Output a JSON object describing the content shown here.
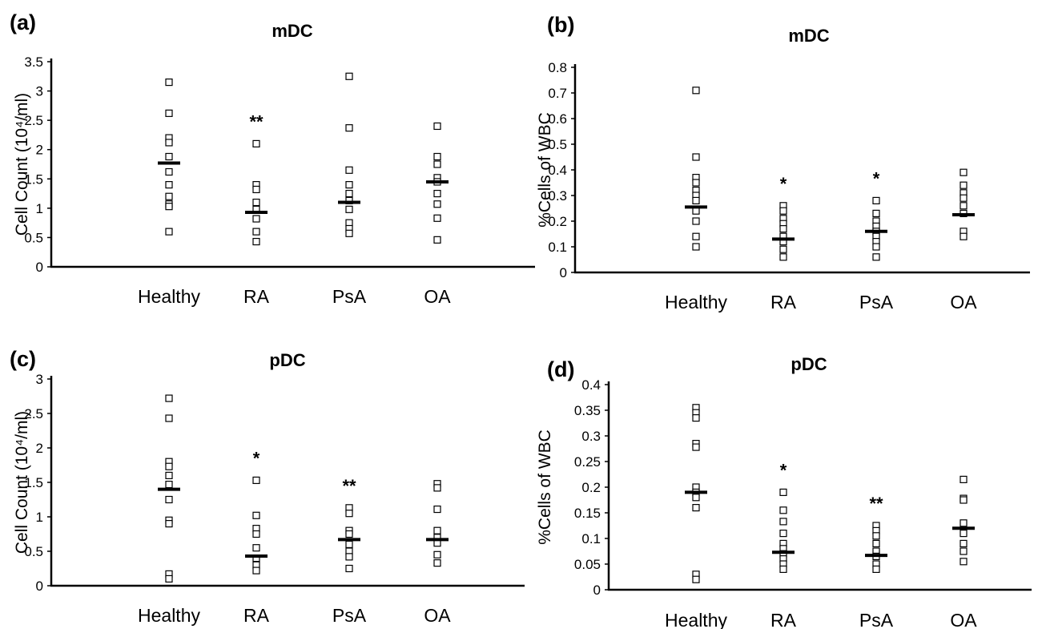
{
  "chart_data": [
    {
      "type": "scatter",
      "panel_label": "(a)",
      "title": "mDC",
      "ylabel": "Cell Count (10⁴/ml)",
      "ylim": [
        0,
        3.5
      ],
      "yticks": [
        "0",
        "0.5",
        "1",
        "1.5",
        "2",
        "2.5",
        "3",
        "3.5"
      ],
      "categories": [
        "Healthy",
        "RA",
        "PsA",
        "OA"
      ],
      "points": [
        [
          3.15,
          2.62,
          2.2,
          2.12,
          1.88,
          1.62,
          1.4,
          1.2,
          1.07,
          1.03,
          0.6
        ],
        [
          2.1,
          1.4,
          1.32,
          1.1,
          0.98,
          0.82,
          0.6,
          0.43
        ],
        [
          3.25,
          2.37,
          1.65,
          1.4,
          1.25,
          1.13,
          0.98,
          0.75,
          0.65,
          0.57
        ],
        [
          2.4,
          1.88,
          1.75,
          1.52,
          1.45,
          1.25,
          1.07,
          0.83,
          0.46
        ]
      ],
      "medians": [
        1.77,
        0.93,
        1.1,
        1.45
      ],
      "significance": [
        "",
        "**",
        "",
        ""
      ]
    },
    {
      "type": "scatter",
      "panel_label": "(b)",
      "title": "mDC",
      "ylabel": "%Cells of WBC",
      "ylim": [
        0,
        0.8
      ],
      "yticks": [
        "0",
        "0.1",
        "0.2",
        "0.3",
        "0.4",
        "0.5",
        "0.6",
        "0.7",
        "0.8"
      ],
      "categories": [
        "Healthy",
        "RA",
        "PsA",
        "OA"
      ],
      "points": [
        [
          0.71,
          0.45,
          0.37,
          0.35,
          0.32,
          0.3,
          0.28,
          0.24,
          0.2,
          0.14,
          0.1
        ],
        [
          0.26,
          0.24,
          0.21,
          0.19,
          0.17,
          0.14,
          0.12,
          0.09,
          0.06
        ],
        [
          0.28,
          0.23,
          0.2,
          0.18,
          0.16,
          0.14,
          0.12,
          0.1,
          0.06
        ],
        [
          0.39,
          0.34,
          0.31,
          0.29,
          0.26,
          0.23,
          0.16,
          0.14
        ]
      ],
      "medians": [
        0.255,
        0.13,
        0.16,
        0.225
      ],
      "significance": [
        "",
        "*",
        "*",
        ""
      ]
    },
    {
      "type": "scatter",
      "panel_label": "(c)",
      "title": "pDC",
      "ylabel": "Cell Count (10⁴/ml)",
      "ylim": [
        0,
        3
      ],
      "yticks": [
        "0",
        "0.5",
        "1",
        "1.5",
        "2",
        "2.5",
        "3"
      ],
      "categories": [
        "Healthy",
        "RA",
        "PsA",
        "OA"
      ],
      "points": [
        [
          2.72,
          2.43,
          1.8,
          1.73,
          1.6,
          1.47,
          1.25,
          0.95,
          0.9,
          0.17,
          0.1
        ],
        [
          1.53,
          1.02,
          0.83,
          0.75,
          0.55,
          0.4,
          0.3,
          0.22
        ],
        [
          1.13,
          1.05,
          0.8,
          0.75,
          0.6,
          0.5,
          0.42,
          0.25
        ],
        [
          1.48,
          1.42,
          1.11,
          0.8,
          0.7,
          0.62,
          0.45,
          0.33
        ]
      ],
      "medians": [
        1.4,
        0.43,
        0.67,
        0.67
      ],
      "significance": [
        "",
        "*",
        "**",
        ""
      ]
    },
    {
      "type": "scatter",
      "panel_label": "(d)",
      "title": "pDC",
      "ylabel": "%Cells of WBC",
      "ylim": [
        0,
        0.4
      ],
      "yticks": [
        "0",
        "0.05",
        "0.1",
        "0.15",
        "0.2",
        "0.25",
        "0.3",
        "0.35",
        "0.4"
      ],
      "categories": [
        "Healthy",
        "RA",
        "PsA",
        "OA"
      ],
      "points": [
        [
          0.355,
          0.345,
          0.335,
          0.285,
          0.278,
          0.2,
          0.19,
          0.18,
          0.16,
          0.03,
          0.02
        ],
        [
          0.19,
          0.155,
          0.133,
          0.11,
          0.09,
          0.08,
          0.07,
          0.06,
          0.05,
          0.04
        ],
        [
          0.125,
          0.115,
          0.105,
          0.09,
          0.075,
          0.065,
          0.05,
          0.04
        ],
        [
          0.215,
          0.178,
          0.175,
          0.13,
          0.11,
          0.09,
          0.075,
          0.055
        ]
      ],
      "medians": [
        0.19,
        0.073,
        0.067,
        0.12
      ],
      "significance": [
        "",
        "*",
        "**",
        ""
      ]
    }
  ]
}
